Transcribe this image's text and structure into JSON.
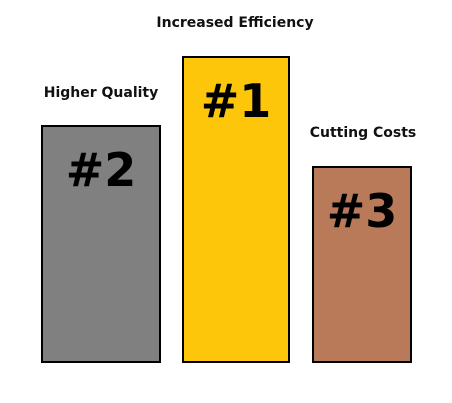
{
  "podium": [
    {
      "id": "efficiency",
      "label": "Increased Efficiency",
      "rank": "#1",
      "color": "#fec60b"
    },
    {
      "id": "quality",
      "label": "Higher Quality",
      "rank": "#2",
      "color": "#808080"
    },
    {
      "id": "costs",
      "label": "Cutting Costs",
      "rank": "#3",
      "color": "#b97a5a"
    }
  ]
}
